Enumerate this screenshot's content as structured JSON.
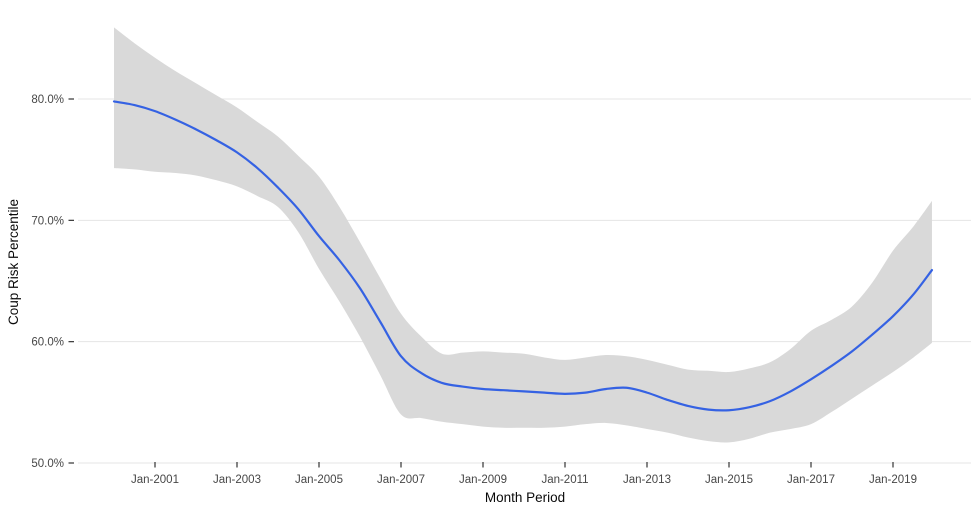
{
  "figure": {
    "background": "#FFFFFF"
  },
  "chart_data": {
    "type": "line",
    "title": "",
    "xlabel": "Month Period",
    "ylabel": "Coup Risk Percentile",
    "legend": "none",
    "grid": "horizontal-major-only",
    "x_range": [
      "Jan-2000",
      "Dec-2019"
    ],
    "ylim_pct": [
      48.5,
      86.5
    ],
    "colors": {
      "line": "#3562E3",
      "ribbon": "#D9D9D9",
      "gridline": "#E4E4E4",
      "tick_mark": "#333333",
      "tick_text": "#474747",
      "axis_title": "#0A0A0A",
      "panel_background": "#FFFFFF"
    },
    "x_ticks": [
      {
        "label": "Jan-2001",
        "year": 2001
      },
      {
        "label": "Jan-2003",
        "year": 2003
      },
      {
        "label": "Jan-2005",
        "year": 2005
      },
      {
        "label": "Jan-2007",
        "year": 2007
      },
      {
        "label": "Jan-2009",
        "year": 2009
      },
      {
        "label": "Jan-2011",
        "year": 2011
      },
      {
        "label": "Jan-2013",
        "year": 2013
      },
      {
        "label": "Jan-2015",
        "year": 2015
      },
      {
        "label": "Jan-2017",
        "year": 2017
      },
      {
        "label": "Jan-2019",
        "year": 2019
      }
    ],
    "y_ticks": [
      {
        "label": "50.0%",
        "pct": 50
      },
      {
        "label": "60.0%",
        "pct": 60
      },
      {
        "label": "70.0%",
        "pct": 70
      },
      {
        "label": "80.0%",
        "pct": 80
      }
    ],
    "series": [
      {
        "name": "smoothed-coup-risk-percentile",
        "style": "smooth-line-with-confidence-ribbon",
        "x_decimal_year": [
          2000,
          2000.5,
          2001,
          2001.5,
          2002,
          2002.5,
          2003,
          2003.5,
          2004,
          2004.5,
          2005,
          2005.5,
          2006,
          2006.5,
          2007,
          2007.5,
          2008,
          2008.5,
          2009,
          2009.5,
          2010,
          2010.5,
          2011,
          2011.5,
          2012,
          2012.5,
          2013,
          2013.5,
          2014,
          2014.5,
          2015,
          2015.5,
          2016,
          2016.5,
          2017,
          2017.5,
          2018,
          2018.5,
          2019,
          2019.5,
          2019.95
        ],
        "y_pct": [
          79.8,
          79.5,
          79.0,
          78.3,
          77.5,
          76.6,
          75.6,
          74.3,
          72.7,
          70.9,
          68.7,
          66.7,
          64.4,
          61.6,
          58.8,
          57.4,
          56.6,
          56.3,
          56.1,
          56.0,
          55.9,
          55.8,
          55.7,
          55.8,
          56.1,
          56.2,
          55.8,
          55.2,
          54.7,
          54.4,
          54.35,
          54.6,
          55.1,
          55.9,
          56.9,
          58.0,
          59.2,
          60.6,
          62.1,
          63.9,
          65.9
        ],
        "ci_high_pct": [
          85.9,
          84.6,
          83.4,
          82.3,
          81.3,
          80.3,
          79.3,
          78.1,
          76.9,
          75.3,
          73.6,
          71.1,
          68.2,
          65.2,
          62.3,
          60.4,
          59.0,
          59.1,
          59.2,
          59.1,
          59.0,
          58.7,
          58.5,
          58.7,
          58.9,
          58.8,
          58.5,
          58.1,
          57.7,
          57.6,
          57.5,
          57.8,
          58.3,
          59.4,
          60.9,
          61.8,
          62.9,
          64.9,
          67.5,
          69.5,
          71.6
        ],
        "ci_low_pct": [
          74.3,
          74.2,
          74.0,
          73.9,
          73.7,
          73.3,
          72.8,
          72.0,
          71.1,
          69.0,
          66.0,
          63.3,
          60.4,
          57.2,
          54.0,
          53.7,
          53.4,
          53.2,
          53.0,
          52.9,
          52.9,
          52.9,
          53.0,
          53.2,
          53.3,
          53.1,
          52.8,
          52.5,
          52.1,
          51.8,
          51.7,
          52.0,
          52.5,
          52.8,
          53.2,
          54.2,
          55.3,
          56.4,
          57.5,
          58.7,
          59.9
        ]
      }
    ]
  }
}
